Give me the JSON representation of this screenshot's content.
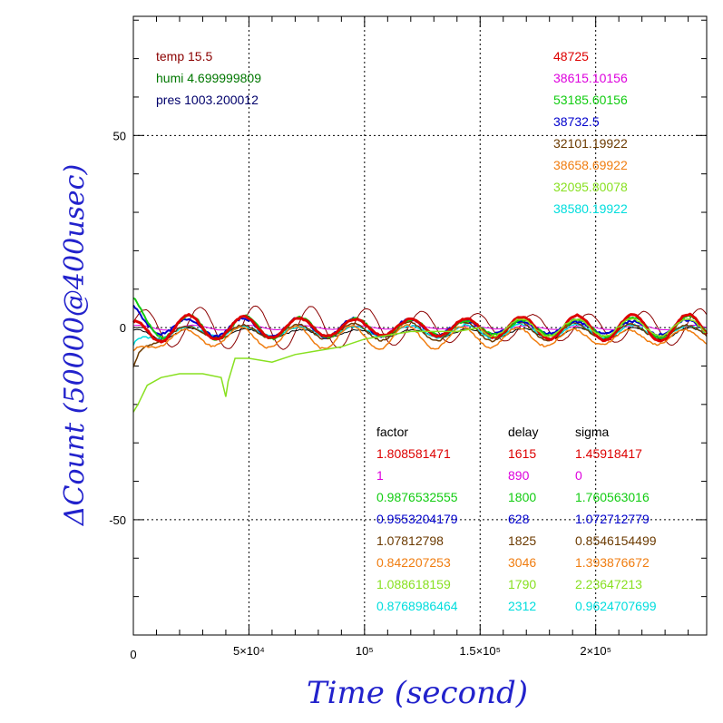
{
  "chart_data": {
    "type": "line",
    "xlabel": "Time (second)",
    "ylabel": "ΔCount (50000@400usec)",
    "xlim": [
      0,
      248000
    ],
    "ylim": [
      -80,
      81
    ],
    "x_ticks": [
      {
        "v": 0,
        "label": "0"
      },
      {
        "v": 50000,
        "label": "5×10⁴"
      },
      {
        "v": 100000,
        "label": "10⁵"
      },
      {
        "v": 150000,
        "label": "1.5×10⁵"
      },
      {
        "v": 200000,
        "label": "2×10⁵"
      }
    ],
    "y_ticks": [
      {
        "v": -50,
        "label": "-50"
      },
      {
        "v": 0,
        "label": "0"
      },
      {
        "v": 50,
        "label": "50"
      }
    ],
    "grid": true,
    "env": [
      {
        "text": "temp 15.5",
        "color": "#8b0000"
      },
      {
        "text": "humi 4.699999809",
        "color": "#007700"
      },
      {
        "text": "pres 1003.200012",
        "color": "#00006b"
      }
    ],
    "counts": [
      {
        "text": "48725",
        "color": "#dd0000"
      },
      {
        "text": "38615.10156",
        "color": "#dd00dd"
      },
      {
        "text": "53185.60156",
        "color": "#11cc11"
      },
      {
        "text": "38732.5",
        "color": "#0000cc"
      },
      {
        "text": "32101.19922",
        "color": "#6b3a00"
      },
      {
        "text": "38658.69922",
        "color": "#f07d10"
      },
      {
        "text": "32095.80078",
        "color": "#88e020"
      },
      {
        "text": "38580.19922",
        "color": "#00dddd"
      }
    ],
    "table_headers": [
      "factor",
      "delay",
      "sigma"
    ],
    "table": [
      {
        "factor": "1.808581471",
        "delay": "1615",
        "sigma": "1.45918417",
        "color": "#dd0000"
      },
      {
        "factor": "1",
        "delay": "890",
        "sigma": "0",
        "color": "#dd00dd"
      },
      {
        "factor": "0.9876532555",
        "delay": "1800",
        "sigma": "1.760563016",
        "color": "#11cc11"
      },
      {
        "factor": "0.9553204179",
        "delay": "628",
        "sigma": "1.072712779",
        "color": "#0000cc"
      },
      {
        "factor": "1.07812798",
        "delay": "1825",
        "sigma": "0.8546154499",
        "color": "#6b3a00"
      },
      {
        "factor": "0.842207253",
        "delay": "3046",
        "sigma": "1.393876672",
        "color": "#f07d10"
      },
      {
        "factor": "1.088618159",
        "delay": "1790",
        "sigma": "2.23647213",
        "color": "#88e020"
      },
      {
        "factor": "0.8768986464",
        "delay": "2312",
        "sigma": "0.9624707699",
        "color": "#00dddd"
      }
    ],
    "series": [
      {
        "color": "#8b0000",
        "amp": 4.5,
        "period": 24000,
        "phase": 0.3,
        "base": 0,
        "noise": 0.2,
        "early": 0,
        "width": 1
      },
      {
        "color": "#dd00dd",
        "amp": 0.5,
        "period": 24000,
        "phase": 1.0,
        "base": 0,
        "noise": 0.1,
        "early": 0,
        "width": 1
      },
      {
        "color": "#000000",
        "amp": 1.2,
        "period": 24000,
        "phase": 1.4,
        "base": -1.5,
        "noise": 0.3,
        "early": -2,
        "width": 1
      },
      {
        "color": "#00dddd",
        "amp": 1.5,
        "period": 24000,
        "phase": 1.6,
        "base": -1,
        "noise": 0.5,
        "early": -6,
        "width": 1.5
      },
      {
        "color": "#6b3a00",
        "amp": 2.0,
        "period": 24000,
        "phase": 1.8,
        "base": -1,
        "noise": 0.5,
        "early": -12,
        "width": 1.5
      },
      {
        "color": "#f07d10",
        "amp": 2.5,
        "period": 24000,
        "phase": 2.0,
        "base": -2.5,
        "noise": 0.5,
        "early": -8,
        "width": 1.5
      },
      {
        "color": "#0000cc",
        "amp": 2.0,
        "period": 24000,
        "phase": 1.7,
        "base": 0,
        "noise": 0.6,
        "early": 4,
        "width": 2
      },
      {
        "color": "#11cc11",
        "amp": 2.5,
        "period": 24000,
        "phase": 1.5,
        "base": 0,
        "noise": 0.6,
        "early": 5,
        "width": 2
      },
      {
        "color": "#dd0000",
        "amp": 2.8,
        "period": 24000,
        "phase": 1.6,
        "base": 0,
        "noise": 0.4,
        "early": -2,
        "width": 3
      }
    ],
    "lime_series": {
      "color": "#88e020",
      "points": [
        [
          0,
          -22
        ],
        [
          2000,
          -20
        ],
        [
          6000,
          -15
        ],
        [
          12000,
          -13
        ],
        [
          20000,
          -12
        ],
        [
          30000,
          -12
        ],
        [
          38000,
          -13
        ],
        [
          40000,
          -18
        ],
        [
          41000,
          -14
        ],
        [
          44000,
          -8
        ],
        [
          50000,
          -8
        ],
        [
          60000,
          -9
        ],
        [
          70000,
          -7
        ],
        [
          80000,
          -6
        ],
        [
          90000,
          -5
        ],
        [
          100000,
          -3
        ],
        [
          110000,
          -2
        ],
        [
          120000,
          -1
        ],
        [
          130000,
          -1
        ],
        [
          140000,
          -1
        ],
        [
          150000,
          0
        ]
      ]
    }
  }
}
